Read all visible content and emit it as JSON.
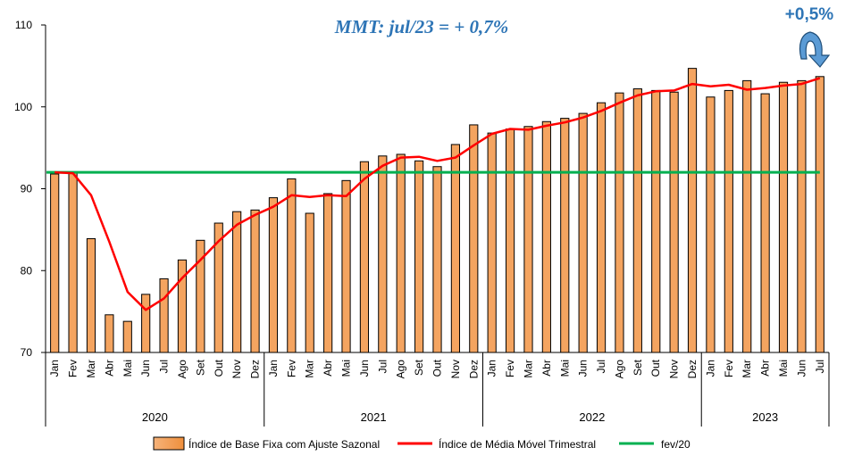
{
  "chart_data": {
    "type": "bar",
    "categories": [
      "Jan",
      "Fev",
      "Mar",
      "Abr",
      "Mai",
      "Jun",
      "Jul",
      "Ago",
      "Set",
      "Out",
      "Nov",
      "Dez",
      "Jan",
      "Fev",
      "Mar",
      "Abr",
      "Mai",
      "Jun",
      "Jul",
      "Ago",
      "Set",
      "Out",
      "Nov",
      "Dez",
      "Jan",
      "Fev",
      "Mar",
      "Abr",
      "Mai",
      "Jun",
      "Jul",
      "Ago",
      "Set",
      "Out",
      "Nov",
      "Dez",
      "Jan",
      "Fev",
      "Mar",
      "Abr",
      "Mai",
      "Jun",
      "Jul"
    ],
    "years": [
      {
        "label": "2020",
        "start": 0,
        "end": 11
      },
      {
        "label": "2021",
        "start": 12,
        "end": 23
      },
      {
        "label": "2022",
        "start": 24,
        "end": 35
      },
      {
        "label": "2023",
        "start": 36,
        "end": 42
      }
    ],
    "series": [
      {
        "name": "Índice de Base Fixa com Ajuste Sazonal",
        "type": "bar",
        "color": "#f4a460",
        "values": [
          91.8,
          92.0,
          83.9,
          74.6,
          73.8,
          77.1,
          79.0,
          81.3,
          83.7,
          85.8,
          87.2,
          87.4,
          88.9,
          91.2,
          87.0,
          89.4,
          91.0,
          93.3,
          94.0,
          94.2,
          93.4,
          92.7,
          95.4,
          97.8,
          96.8,
          97.3,
          97.6,
          98.2,
          98.6,
          99.2,
          100.5,
          101.7,
          102.2,
          102.0,
          101.8,
          104.7,
          101.2,
          102.0,
          103.2,
          101.6,
          103.0,
          103.2,
          103.7
        ]
      },
      {
        "name": "Índice de Média Móvel Trimestral",
        "type": "line",
        "color": "#ff0000",
        "values": [
          92.0,
          91.9,
          89.2,
          83.5,
          77.4,
          75.2,
          76.6,
          79.1,
          81.3,
          83.6,
          85.6,
          86.8,
          87.8,
          89.2,
          89.0,
          89.2,
          89.1,
          91.2,
          92.8,
          93.8,
          93.9,
          93.4,
          93.8,
          95.3,
          96.7,
          97.3,
          97.2,
          97.7,
          98.1,
          98.7,
          99.5,
          100.5,
          101.4,
          101.9,
          102.0,
          102.8,
          102.5,
          102.7,
          102.1,
          102.3,
          102.6,
          102.8,
          103.5
        ]
      },
      {
        "name": "fev/20",
        "type": "line",
        "color": "#00b050",
        "values_constant": 92.0
      }
    ],
    "ylim": [
      70,
      110
    ],
    "yticks": [
      70,
      80,
      90,
      100,
      110
    ],
    "annotations": {
      "mmt": "MMT: jul/23 =   + 0,7%",
      "delta": "+0,5%"
    },
    "legend_position": "bottom"
  },
  "colors": {
    "bar_fill": "#f4a460",
    "bar_stroke": "#000000",
    "ma_line": "#ff0000",
    "ref_line": "#00b050",
    "annotation": "#2e75b6",
    "arrow": "#1f5fa8",
    "arrow_light": "#5b9bd5"
  }
}
